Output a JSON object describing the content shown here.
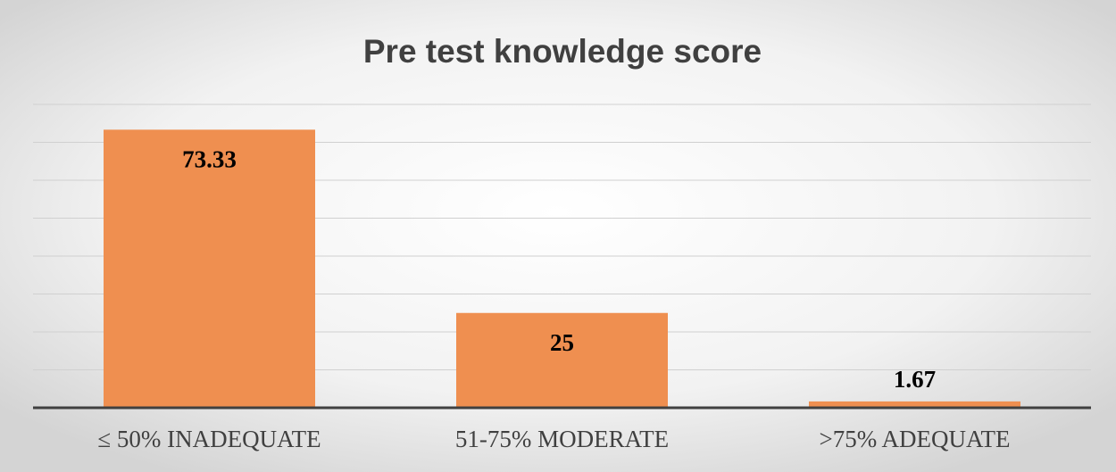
{
  "chart_data": {
    "type": "bar",
    "title": "Pre test knowledge score",
    "categories": [
      "≤ 50% INADEQUATE",
      "51-75% MODERATE",
      ">75% ADEQUATE"
    ],
    "values": [
      73.33,
      25,
      1.67
    ],
    "color": "#ef8f50",
    "ylim": [
      0,
      80
    ],
    "yticks": [
      0,
      10,
      20,
      30,
      40,
      50,
      60,
      70,
      80
    ],
    "grid": true
  }
}
